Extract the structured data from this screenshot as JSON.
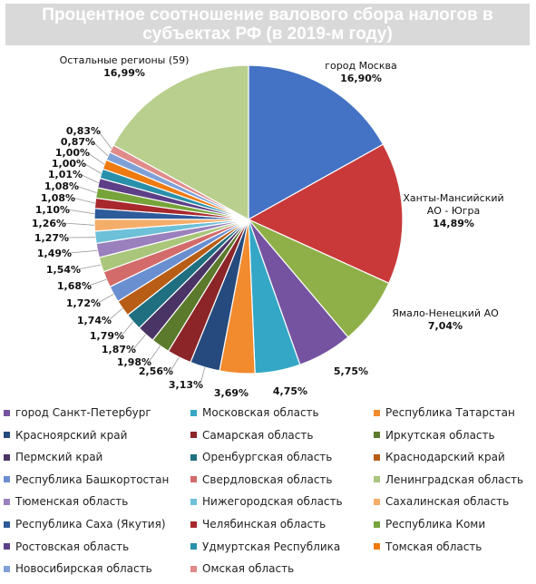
{
  "chart_data": {
    "type": "pie",
    "title_lines": [
      "Процентное соотношение валового сбора налогов в",
      "субъектах РФ (в 2019-м году)"
    ],
    "slices": [
      {
        "name": "город Москва",
        "label_lines": [
          "город Москва",
          "16,90%"
        ],
        "value": 16.9,
        "color": "#4472c4"
      },
      {
        "name": "Ханты-Мансийский АО - Югра",
        "label_lines": [
          "Ханты-Мансийский",
          "АО - Югра",
          "14,89%"
        ],
        "value": 14.89,
        "color": "#c9393a"
      },
      {
        "name": "Ямало-Ненецкий АО",
        "label_lines": [
          "Ямало-Ненецкий АО",
          "7,04%"
        ],
        "value": 7.04,
        "color": "#8fb048"
      },
      {
        "name": "город Санкт-Петербург",
        "label_lines": [
          "5,75%"
        ],
        "value": 5.75,
        "color": "#7553a0"
      },
      {
        "name": "Московская область",
        "label_lines": [
          "4,75%"
        ],
        "value": 4.75,
        "color": "#35a7c6"
      },
      {
        "name": "Республика Татарстан",
        "label_lines": [
          "3,69%"
        ],
        "value": 3.69,
        "color": "#f28a2e"
      },
      {
        "name": "Красноярский край",
        "label_lines": [
          "3,13%"
        ],
        "value": 3.13,
        "color": "#264a7d"
      },
      {
        "name": "Самарская область",
        "label_lines": [
          "2,56%"
        ],
        "value": 2.56,
        "color": "#8b2528"
      },
      {
        "name": "Иркутская область",
        "label_lines": [
          "1,98%"
        ],
        "value": 1.98,
        "color": "#5b7a2c"
      },
      {
        "name": "Пермский край",
        "label_lines": [
          "1,87%"
        ],
        "value": 1.87,
        "color": "#4a3466"
      },
      {
        "name": "Оренбургская область",
        "label_lines": [
          "1,79%"
        ],
        "value": 1.79,
        "color": "#1f6f80"
      },
      {
        "name": "Краснодарский край",
        "label_lines": [
          "1,74%"
        ],
        "value": 1.74,
        "color": "#b85d15"
      },
      {
        "name": "Республика Башкортостан",
        "label_lines": [
          "1,72%"
        ],
        "value": 1.72,
        "color": "#6a8fd0"
      },
      {
        "name": "Свердловская область",
        "label_lines": [
          "1,68%"
        ],
        "value": 1.68,
        "color": "#d36b6b"
      },
      {
        "name": "Ленинградская область",
        "label_lines": [
          "1,54%"
        ],
        "value": 1.54,
        "color": "#a9c67a"
      },
      {
        "name": "Тюменская область",
        "label_lines": [
          "1,49%"
        ],
        "value": 1.49,
        "color": "#9a80bd"
      },
      {
        "name": "Нижегородская область",
        "label_lines": [
          "1,27%"
        ],
        "value": 1.27,
        "color": "#6cc0d8"
      },
      {
        "name": "Сахалинская область",
        "label_lines": [
          "1,26%"
        ],
        "value": 1.26,
        "color": "#f5ad6a"
      },
      {
        "name": "Республика Саха (Якутия)",
        "label_lines": [
          "1,10%"
        ],
        "value": 1.1,
        "color": "#2e5b9a"
      },
      {
        "name": "Челябинская область",
        "label_lines": [
          "1,08%"
        ],
        "value": 1.08,
        "color": "#a8282d"
      },
      {
        "name": "Республика Коми",
        "label_lines": [
          "1,08%"
        ],
        "value": 1.08,
        "color": "#77a43a"
      },
      {
        "name": "Ростовская область",
        "label_lines": [
          "1,01%"
        ],
        "value": 1.01,
        "color": "#5c3f86"
      },
      {
        "name": "Удмуртская Республика",
        "label_lines": [
          "1,00%"
        ],
        "value": 1.0,
        "color": "#2990a9"
      },
      {
        "name": "Томская область",
        "label_lines": [
          "1,00%"
        ],
        "value": 1.0,
        "color": "#ee7a10"
      },
      {
        "name": "Новосибирская область",
        "label_lines": [
          "0,87%"
        ],
        "value": 0.87,
        "color": "#7fa1d8"
      },
      {
        "name": "Омская область",
        "label_lines": [
          "0,83%"
        ],
        "value": 0.83,
        "color": "#e08a8a"
      },
      {
        "name": "Остальные регионы (59)",
        "label_lines": [
          "Остальные регионы (59)",
          "16,99%"
        ],
        "value": 16.99,
        "color": "#b9cf8e"
      }
    ],
    "legend_placement": "bottom",
    "legend_columns": [
      [
        "город Санкт-Петербург",
        "Красноярский край",
        "Пермский край",
        "Республика Башкортостан",
        "Тюменская область",
        "Республика Саха (Якутия)",
        "Ростовская область",
        "Новосибирская область"
      ],
      [
        "Московская область",
        "Самарская область",
        "Оренбургская область",
        "Свердловская область",
        "Нижегородская область",
        "Челябинская область",
        "Удмуртская Республика",
        "Омская область"
      ],
      [
        "Республика Татарстан",
        "Иркутская область",
        "Краснодарский край",
        "Ленинградская область",
        "Сахалинская область",
        "Республика Коми",
        "Томская область"
      ]
    ]
  }
}
